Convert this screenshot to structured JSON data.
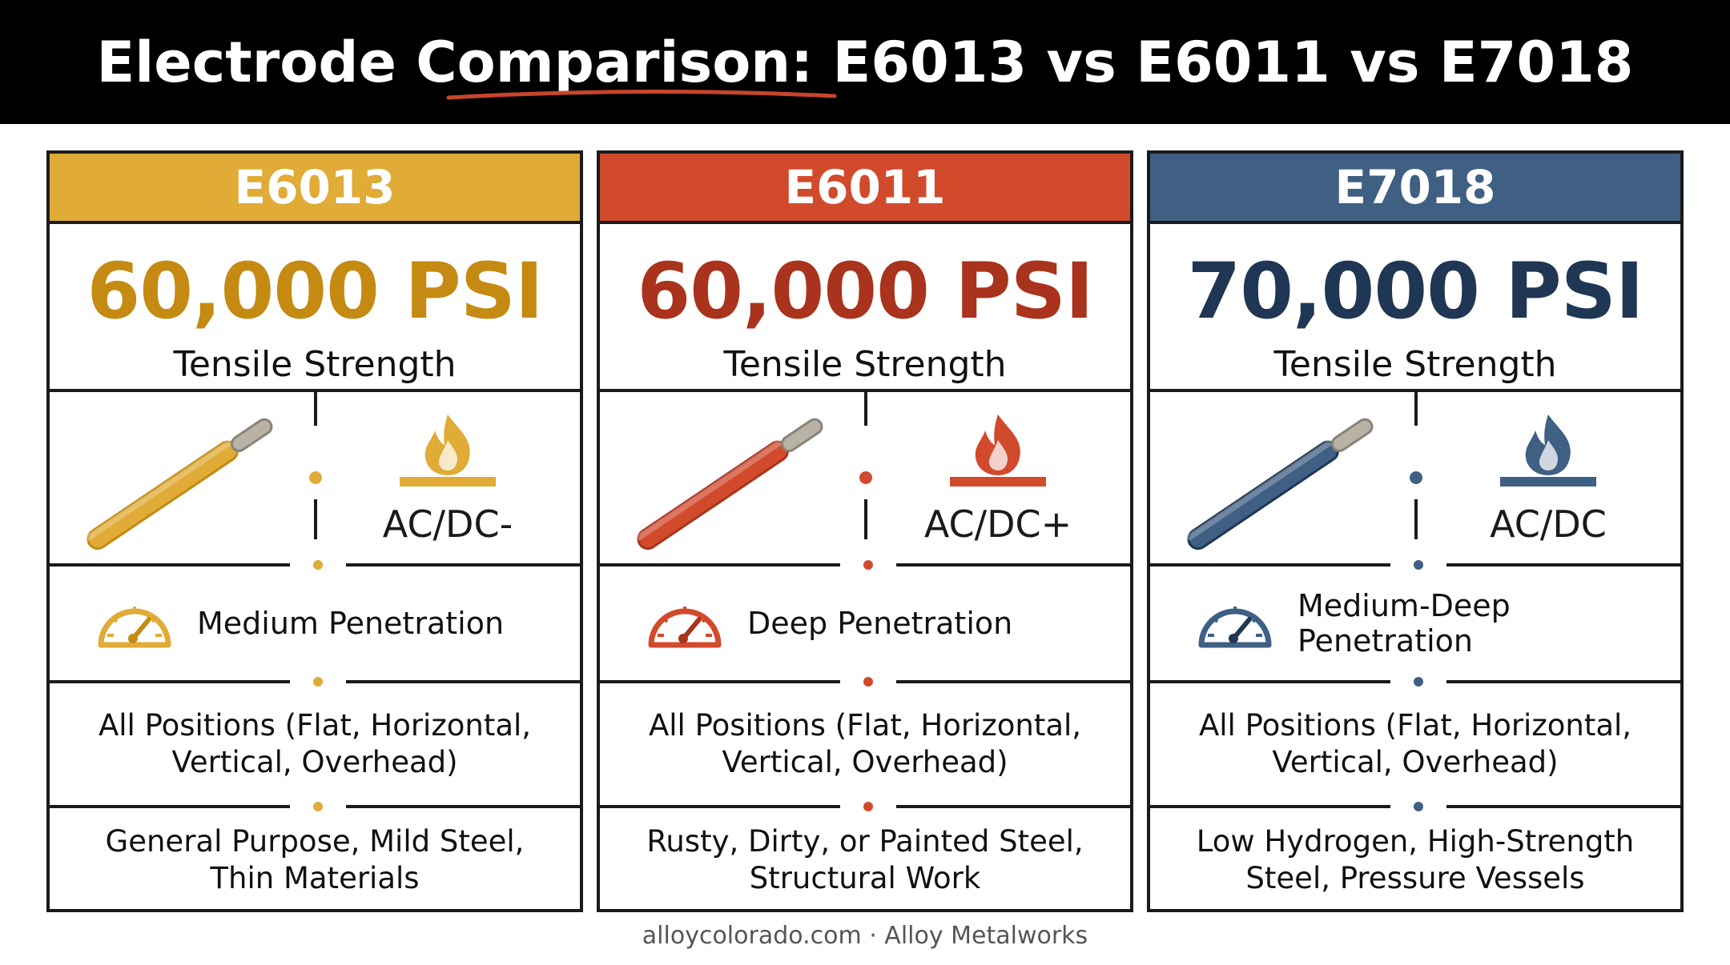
{
  "title": {
    "text": "Electrode Comparison: E6013 vs E6011 vs E7018",
    "underline_color": "#c8452a"
  },
  "cards": [
    {
      "name": "E6013",
      "color": "#e0ab36",
      "dark_color": "#c48a12",
      "tensile_value": "60,000 PSI",
      "tensile_label": "Tensile Strength",
      "current": "AC/DC-",
      "penetration": "Medium Penetration",
      "positions": [
        "All Positions (Flat, Horizontal,",
        "Vertical, Overhead)"
      ],
      "uses": [
        "General Purpose, Mild Steel,",
        "Thin Materials"
      ],
      "icons": {
        "rod": "electrode-rod-icon",
        "flame": "flame-icon",
        "gauge": "gauge-icon"
      }
    },
    {
      "name": "E6011",
      "color": "#d24a2c",
      "dark_color": "#a9331c",
      "tensile_value": "60,000 PSI",
      "tensile_label": "Tensile Strength",
      "current": "AC/DC+",
      "penetration": "Deep Penetration",
      "positions": [
        "All Positions (Flat, Horizontal,",
        "Vertical, Overhead)"
      ],
      "uses": [
        "Rusty, Dirty, or Painted Steel,",
        "Structural Work"
      ],
      "icons": {
        "rod": "electrode-rod-icon",
        "flame": "flame-icon",
        "gauge": "gauge-icon"
      }
    },
    {
      "name": "E7018",
      "color": "#3f5f83",
      "dark_color": "#1f3654",
      "tensile_value": "70,000 PSI",
      "tensile_label": "Tensile Strength",
      "current": "AC/DC",
      "penetration": "Medium-Deep Penetration",
      "positions": [
        "All Positions (Flat, Horizontal,",
        "Vertical, Overhead)"
      ],
      "uses": [
        "Low Hydrogen, High-Strength",
        "Steel, Pressure Vessels"
      ],
      "icons": {
        "rod": "electrode-rod-icon",
        "flame": "flame-icon",
        "gauge": "gauge-icon"
      }
    }
  ],
  "footer": "alloycolorado.com · Alloy Metalworks"
}
